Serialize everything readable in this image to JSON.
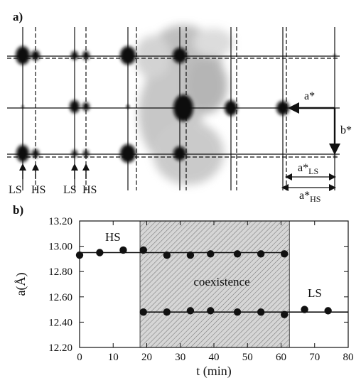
{
  "panel_a": {
    "label": "a)",
    "arrow_labels": [
      "LS",
      "HS",
      "LS",
      "HS"
    ],
    "a_star": "a*",
    "b_star": "b*",
    "a_ls": {
      "main": "a*",
      "sub": "LS"
    },
    "a_hs": {
      "main": "a*",
      "sub": "HS"
    }
  },
  "panel_b": {
    "label": "b)"
  },
  "chart_data": {
    "type": "scatter",
    "xlabel": "t (min)",
    "ylabel": "a(Å)",
    "xlim": [
      0,
      80
    ],
    "ylim": [
      12.2,
      13.2
    ],
    "xticks": [
      0,
      10,
      20,
      30,
      40,
      50,
      60,
      70,
      80
    ],
    "yticks": [
      "12.20",
      "12.40",
      "12.60",
      "12.80",
      "13.00",
      "13.20"
    ],
    "grid": false,
    "shaded_region": {
      "x": [
        18,
        62.5
      ],
      "label": "coexistence"
    },
    "annotations": [
      "HS",
      "coexistence",
      "LS"
    ],
    "series": [
      {
        "name": "HS",
        "points": [
          [
            0,
            12.93
          ],
          [
            6,
            12.95
          ],
          [
            13,
            12.97
          ],
          [
            19,
            12.97
          ],
          [
            26,
            12.93
          ],
          [
            33,
            12.93
          ],
          [
            39,
            12.94
          ],
          [
            47,
            12.94
          ],
          [
            54,
            12.94
          ],
          [
            61,
            12.94
          ]
        ],
        "fit": {
          "x": [
            0,
            62
          ],
          "y": [
            12.95,
            12.95
          ]
        }
      },
      {
        "name": "LS",
        "points": [
          [
            19,
            12.48
          ],
          [
            26,
            12.48
          ],
          [
            33,
            12.49
          ],
          [
            39,
            12.49
          ],
          [
            47,
            12.48
          ],
          [
            54,
            12.48
          ],
          [
            61,
            12.46
          ],
          [
            67,
            12.5
          ],
          [
            74,
            12.49
          ]
        ],
        "fit": {
          "x": [
            18,
            80
          ],
          "y": [
            12.48,
            12.48
          ]
        }
      }
    ]
  }
}
